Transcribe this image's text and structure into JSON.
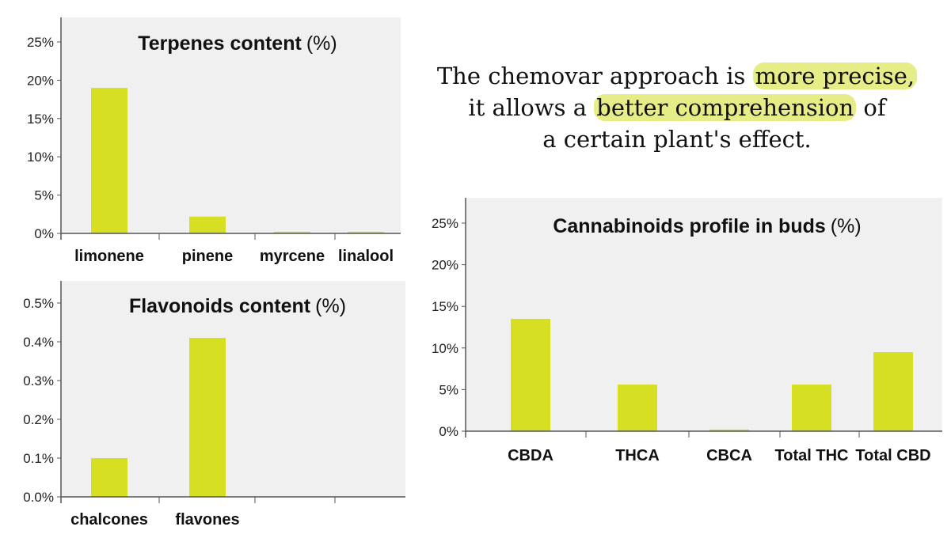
{
  "quote": {
    "line1_pre": "The chemovar approach is ",
    "line1_hl": "more precise,",
    "line2_pre": "it allows a ",
    "line2_hl": "better comprehension",
    "line2_post": " of",
    "line3": "a certain plant's effect."
  },
  "colors": {
    "bar": "#d6df22",
    "panel": "#f0f0f0",
    "axis": "#555555"
  },
  "chart_data": [
    {
      "type": "bar",
      "title": "Terpenes content",
      "title_unit": "(%)",
      "categories": [
        "limonene",
        "pinene",
        "myrcene",
        "linalool"
      ],
      "values": [
        19,
        2.2,
        0.2,
        0.2
      ],
      "ylim": [
        0,
        25
      ],
      "yticks": [
        0,
        5,
        10,
        15,
        20,
        25
      ],
      "ytick_labels": [
        "0%",
        "5%",
        "10%",
        "15%",
        "20%",
        "25%"
      ],
      "grid": false
    },
    {
      "type": "bar",
      "title": "Flavonoids content",
      "title_unit": "(%)",
      "categories": [
        "chalcones",
        "flavones"
      ],
      "values": [
        0.1,
        0.41
      ],
      "ylim": [
        0,
        0.5
      ],
      "yticks": [
        0,
        0.1,
        0.2,
        0.3,
        0.4,
        0.5
      ],
      "ytick_labels": [
        "0.0%",
        "0.1%",
        "0.2%",
        "0.3%",
        "0.4%",
        "0.5%"
      ],
      "grid": false
    },
    {
      "type": "bar",
      "title": "Cannabinoids profile in buds",
      "title_unit": "(%)",
      "categories": [
        "CBDA",
        "THCA",
        "CBCA",
        "Total THC",
        "Total CBD"
      ],
      "values": [
        13.5,
        5.6,
        0.2,
        5.6,
        9.5
      ],
      "ylim": [
        0,
        25
      ],
      "yticks": [
        0,
        5,
        10,
        15,
        20,
        25
      ],
      "ytick_labels": [
        "0%",
        "5%",
        "10%",
        "15%",
        "20%",
        "25%"
      ],
      "grid": false
    }
  ]
}
